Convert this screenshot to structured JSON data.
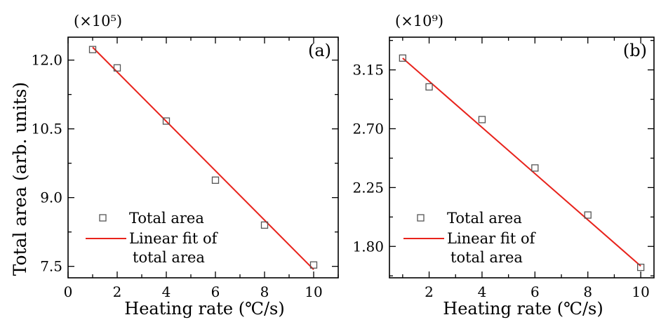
{
  "figure": {
    "ylabel": "Total area (arb. units)"
  },
  "chart_data": [
    {
      "type": "scatter",
      "panel_label": "(a)",
      "multiplier": "(×10⁵)",
      "xlabel": "Heating rate (℃/s)",
      "ylabel": "Total area (arb. units)",
      "xlim": [
        0,
        11
      ],
      "ylim": [
        7.25,
        12.5
      ],
      "x_ticks": [
        0,
        2,
        4,
        6,
        8,
        10
      ],
      "y_ticks": [
        7.5,
        9.0,
        10.5,
        12.0
      ],
      "y_tick_labels": [
        "7.5",
        "9.0",
        "10.5",
        "12.0"
      ],
      "series": [
        {
          "name": "Total area",
          "marker": "open-square",
          "color": "#555555",
          "x": [
            1,
            2,
            4,
            6,
            8,
            10
          ],
          "y": [
            12.23,
            11.83,
            10.67,
            9.38,
            8.4,
            7.53
          ]
        },
        {
          "name": "Linear fit of total area",
          "legend_lines": [
            "Linear fit of",
            "total area"
          ],
          "line": "solid",
          "color": "#e8231c",
          "x": [
            1,
            10
          ],
          "y": [
            12.28,
            7.43
          ]
        }
      ],
      "legend": "bottom-left"
    },
    {
      "type": "scatter",
      "panel_label": "(b)",
      "multiplier": "(×10⁹)",
      "xlabel": "Heating rate (℃/s)",
      "ylabel": "",
      "xlim": [
        0.5,
        10.5
      ],
      "ylim": [
        1.56,
        3.4
      ],
      "x_ticks": [
        2,
        4,
        6,
        8,
        10
      ],
      "y_ticks": [
        1.8,
        2.25,
        2.7,
        3.15
      ],
      "y_tick_labels": [
        "1.80",
        "2.25",
        "2.70",
        "3.15"
      ],
      "series": [
        {
          "name": "Total area",
          "marker": "open-square",
          "color": "#555555",
          "x": [
            1,
            2,
            4,
            6,
            8,
            10
          ],
          "y": [
            3.24,
            3.02,
            2.77,
            2.4,
            2.04,
            1.64
          ]
        },
        {
          "name": "Linear fit of total area",
          "legend_lines": [
            "Linear fit of",
            "total area"
          ],
          "line": "solid",
          "color": "#e8231c",
          "x": [
            1,
            10
          ],
          "y": [
            3.24,
            1.65
          ]
        }
      ],
      "legend": "bottom-left"
    }
  ]
}
